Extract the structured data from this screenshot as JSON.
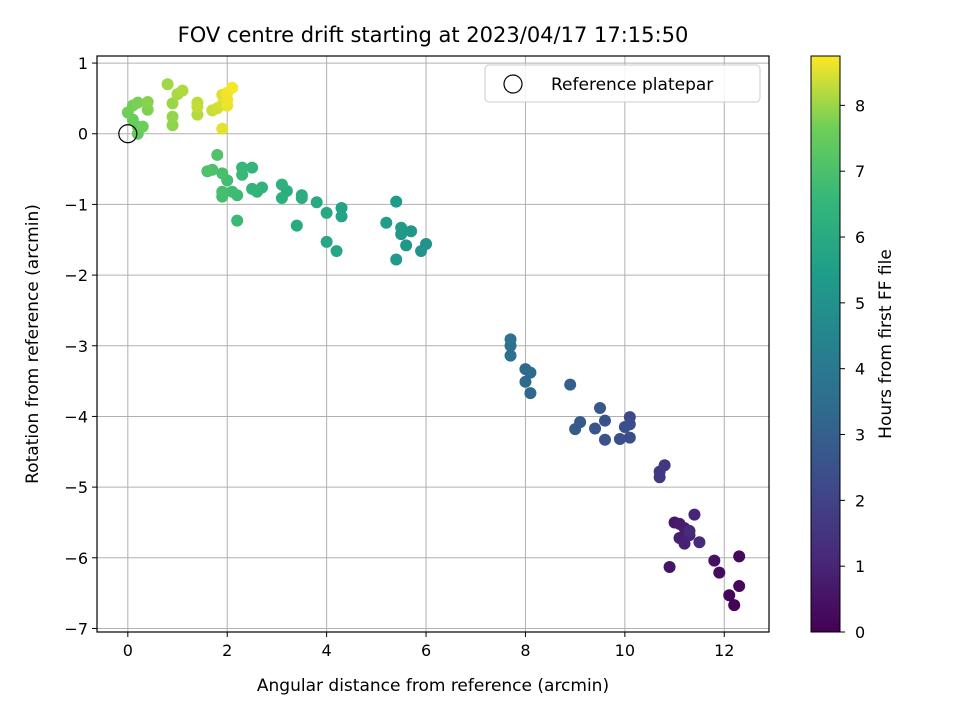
{
  "chart_data": {
    "type": "scatter",
    "title": "FOV centre drift starting at 2023/04/17 17:15:50",
    "xlabel": "Angular distance from reference (arcmin)",
    "ylabel": "Rotation from reference (arcmin)",
    "xlim": [
      -0.62,
      12.9
    ],
    "ylim": [
      -7.05,
      1.1
    ],
    "xticks": [
      0,
      2,
      4,
      6,
      8,
      10,
      12
    ],
    "yticks": [
      1,
      0,
      -1,
      -2,
      -3,
      -4,
      -5,
      -6,
      -7
    ],
    "xtick_labels": [
      "0",
      "2",
      "4",
      "6",
      "8",
      "10",
      "12"
    ],
    "ytick_labels": [
      "1",
      "0",
      "−1",
      "−2",
      "−3",
      "−4",
      "−5",
      "−6",
      "−7"
    ],
    "grid": true,
    "legend": {
      "position": "top-right",
      "entries": [
        "Reference platepar"
      ]
    },
    "reference_point": {
      "x": 0,
      "y": 0
    },
    "colorbar": {
      "label": "Hours from first FF file",
      "colormap": "viridis",
      "range": [
        0,
        8.75
      ],
      "ticks": [
        0,
        1,
        2,
        3,
        4,
        5,
        6,
        7,
        8
      ],
      "tick_labels": [
        "0",
        "1",
        "2",
        "3",
        "4",
        "5",
        "6",
        "7",
        "8"
      ]
    },
    "points": [
      {
        "x": 12.2,
        "y": -6.67,
        "h": 0.08
      },
      {
        "x": 12.1,
        "y": -6.53,
        "h": 0.15
      },
      {
        "x": 12.3,
        "y": -6.4,
        "h": 0.2
      },
      {
        "x": 12.3,
        "y": -5.98,
        "h": 0.25
      },
      {
        "x": 11.9,
        "y": -6.21,
        "h": 0.35
      },
      {
        "x": 11.8,
        "y": -6.04,
        "h": 0.45
      },
      {
        "x": 10.9,
        "y": -6.13,
        "h": 0.55
      },
      {
        "x": 11.0,
        "y": -5.5,
        "h": 0.65
      },
      {
        "x": 11.1,
        "y": -5.52,
        "h": 0.7
      },
      {
        "x": 11.2,
        "y": -5.58,
        "h": 0.8
      },
      {
        "x": 11.1,
        "y": -5.72,
        "h": 0.85
      },
      {
        "x": 11.2,
        "y": -5.8,
        "h": 0.9
      },
      {
        "x": 11.3,
        "y": -5.68,
        "h": 1.0
      },
      {
        "x": 11.4,
        "y": -5.39,
        "h": 1.05
      },
      {
        "x": 11.5,
        "y": -5.78,
        "h": 1.15
      },
      {
        "x": 11.3,
        "y": -5.62,
        "h": 1.2
      },
      {
        "x": 10.8,
        "y": -4.69,
        "h": 1.6
      },
      {
        "x": 10.7,
        "y": -4.86,
        "h": 1.65
      },
      {
        "x": 10.7,
        "y": -4.78,
        "h": 1.7
      },
      {
        "x": 10.1,
        "y": -4.01,
        "h": 2.2
      },
      {
        "x": 10.1,
        "y": -4.11,
        "h": 2.3
      },
      {
        "x": 10.1,
        "y": -4.3,
        "h": 2.35
      },
      {
        "x": 9.9,
        "y": -4.32,
        "h": 2.4
      },
      {
        "x": 10.0,
        "y": -4.15,
        "h": 2.45
      },
      {
        "x": 9.6,
        "y": -4.06,
        "h": 2.5
      },
      {
        "x": 9.6,
        "y": -4.33,
        "h": 2.55
      },
      {
        "x": 9.4,
        "y": -4.17,
        "h": 2.6
      },
      {
        "x": 9.5,
        "y": -3.88,
        "h": 2.7
      },
      {
        "x": 9.1,
        "y": -4.08,
        "h": 2.75
      },
      {
        "x": 9.0,
        "y": -4.18,
        "h": 2.85
      },
      {
        "x": 8.9,
        "y": -3.55,
        "h": 2.95
      },
      {
        "x": 8.1,
        "y": -3.67,
        "h": 3.25
      },
      {
        "x": 8.0,
        "y": -3.51,
        "h": 3.3
      },
      {
        "x": 8.1,
        "y": -3.38,
        "h": 3.35
      },
      {
        "x": 8.0,
        "y": -3.33,
        "h": 3.4
      },
      {
        "x": 7.7,
        "y": -3.14,
        "h": 3.6
      },
      {
        "x": 7.7,
        "y": -3.0,
        "h": 3.65
      },
      {
        "x": 7.7,
        "y": -2.91,
        "h": 3.7
      },
      {
        "x": 6.0,
        "y": -1.56,
        "h": 5.05
      },
      {
        "x": 5.9,
        "y": -1.66,
        "h": 5.1
      },
      {
        "x": 5.7,
        "y": -1.38,
        "h": 5.15
      },
      {
        "x": 5.6,
        "y": -1.58,
        "h": 5.2
      },
      {
        "x": 5.5,
        "y": -1.42,
        "h": 5.25
      },
      {
        "x": 5.4,
        "y": -1.78,
        "h": 5.3
      },
      {
        "x": 5.5,
        "y": -1.33,
        "h": 5.35
      },
      {
        "x": 5.4,
        "y": -0.96,
        "h": 5.4
      },
      {
        "x": 5.2,
        "y": -1.26,
        "h": 5.45
      },
      {
        "x": 4.3,
        "y": -1.17,
        "h": 5.7
      },
      {
        "x": 4.3,
        "y": -1.05,
        "h": 5.75
      },
      {
        "x": 4.2,
        "y": -1.66,
        "h": 5.8
      },
      {
        "x": 4.0,
        "y": -1.53,
        "h": 5.85
      },
      {
        "x": 4.0,
        "y": -1.12,
        "h": 5.9
      },
      {
        "x": 3.8,
        "y": -0.97,
        "h": 5.95
      },
      {
        "x": 3.4,
        "y": -1.3,
        "h": 6.0
      },
      {
        "x": 3.5,
        "y": -0.87,
        "h": 6.05
      },
      {
        "x": 3.5,
        "y": -0.91,
        "h": 6.1
      },
      {
        "x": 3.2,
        "y": -0.81,
        "h": 6.15
      },
      {
        "x": 3.1,
        "y": -0.91,
        "h": 6.2
      },
      {
        "x": 3.1,
        "y": -0.72,
        "h": 6.25
      },
      {
        "x": 2.7,
        "y": -0.76,
        "h": 6.35
      },
      {
        "x": 2.6,
        "y": -0.82,
        "h": 6.4
      },
      {
        "x": 2.5,
        "y": -0.78,
        "h": 6.45
      },
      {
        "x": 2.5,
        "y": -0.48,
        "h": 6.5
      },
      {
        "x": 2.3,
        "y": -0.48,
        "h": 6.55
      },
      {
        "x": 2.3,
        "y": -0.58,
        "h": 6.6
      },
      {
        "x": 2.2,
        "y": -1.23,
        "h": 6.65
      },
      {
        "x": 2.2,
        "y": -0.87,
        "h": 6.7
      },
      {
        "x": 2.1,
        "y": -0.82,
        "h": 6.75
      },
      {
        "x": 2.0,
        "y": -0.66,
        "h": 6.8
      },
      {
        "x": 1.9,
        "y": -0.89,
        "h": 6.85
      },
      {
        "x": 1.9,
        "y": -0.82,
        "h": 6.9
      },
      {
        "x": 1.9,
        "y": -0.56,
        "h": 6.95
      },
      {
        "x": 1.7,
        "y": -0.51,
        "h": 7.0
      },
      {
        "x": 1.6,
        "y": -0.53,
        "h": 7.05
      },
      {
        "x": 1.8,
        "y": -0.3,
        "h": 7.1
      },
      {
        "x": 0.2,
        "y": 0.0,
        "h": 7.45
      },
      {
        "x": 0.2,
        "y": 0.1,
        "h": 7.5
      },
      {
        "x": 0.1,
        "y": 0.2,
        "h": 7.55
      },
      {
        "x": 0.3,
        "y": 0.1,
        "h": 7.6
      },
      {
        "x": 0.0,
        "y": 0.3,
        "h": 7.65
      },
      {
        "x": 0.1,
        "y": 0.4,
        "h": 7.7
      },
      {
        "x": 0.2,
        "y": 0.44,
        "h": 7.75
      },
      {
        "x": 0.4,
        "y": 0.34,
        "h": 7.8
      },
      {
        "x": 0.4,
        "y": 0.45,
        "h": 7.85
      },
      {
        "x": 0.9,
        "y": 0.12,
        "h": 7.9
      },
      {
        "x": 0.9,
        "y": 0.24,
        "h": 7.95
      },
      {
        "x": 0.9,
        "y": 0.43,
        "h": 8.0
      },
      {
        "x": 0.8,
        "y": 0.7,
        "h": 8.05
      },
      {
        "x": 1.0,
        "y": 0.56,
        "h": 8.1
      },
      {
        "x": 1.1,
        "y": 0.61,
        "h": 8.15
      },
      {
        "x": 1.4,
        "y": 0.27,
        "h": 8.2
      },
      {
        "x": 1.4,
        "y": 0.44,
        "h": 8.25
      },
      {
        "x": 1.4,
        "y": 0.38,
        "h": 8.3
      },
      {
        "x": 1.7,
        "y": 0.33,
        "h": 8.35
      },
      {
        "x": 1.8,
        "y": 0.36,
        "h": 8.4
      },
      {
        "x": 1.9,
        "y": 0.41,
        "h": 8.45
      },
      {
        "x": 1.9,
        "y": 0.55,
        "h": 8.5
      },
      {
        "x": 1.9,
        "y": 0.07,
        "h": 8.55
      },
      {
        "x": 2.0,
        "y": 0.4,
        "h": 8.6
      },
      {
        "x": 2.0,
        "y": 0.48,
        "h": 8.63
      },
      {
        "x": 2.0,
        "y": 0.58,
        "h": 8.66
      },
      {
        "x": 2.1,
        "y": 0.65,
        "h": 8.7
      }
    ]
  }
}
